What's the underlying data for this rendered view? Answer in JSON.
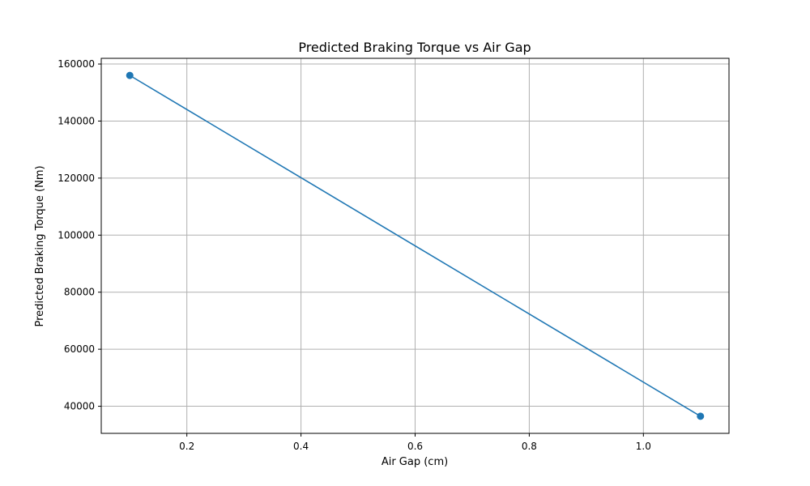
{
  "chart_data": {
    "type": "line",
    "title": "Predicted Braking Torque vs Air Gap",
    "xlabel": "Air Gap (cm)",
    "ylabel": "Predicted Braking Torque (Nm)",
    "series": [
      {
        "x": [
          0.1,
          1.1
        ],
        "values": [
          156000,
          36500
        ],
        "color": "#1f77b4",
        "marker": "circle"
      }
    ],
    "xlim": [
      0.05,
      1.15
    ],
    "ylim": [
      30500,
      162000
    ],
    "xticks": [
      0.2,
      0.4,
      0.6,
      0.8,
      1.0
    ],
    "xtick_labels": [
      "0.2",
      "0.4",
      "0.6",
      "0.8",
      "1.0"
    ],
    "yticks": [
      40000,
      60000,
      80000,
      100000,
      120000,
      140000,
      160000
    ],
    "ytick_labels": [
      "40000",
      "60000",
      "80000",
      "100000",
      "120000",
      "140000",
      "160000"
    ],
    "grid": true
  }
}
